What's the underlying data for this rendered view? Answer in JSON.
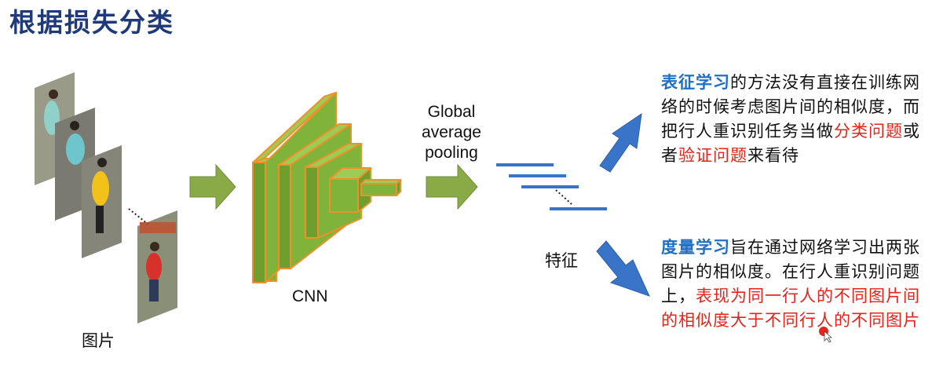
{
  "title": "根据损失分类",
  "images_label": "图片",
  "cnn_label": "CNN",
  "gap_label": [
    "Global",
    "average",
    "pooling"
  ],
  "feature_label": "特征",
  "representation": {
    "keyword": "表征学习",
    "text1": "的方法没有直接在训练网络的时候考虑图片间的相似度，而把行人重识别任务当做",
    "red1": "分类问题",
    "text2": "或者",
    "red2": "验证问题",
    "text3": "来看待"
  },
  "metric": {
    "keyword": "度量学习",
    "text1": "旨在通过网络学习出两张图片的相似度。在行人重识别问题上，",
    "red1": "表现为同一行人的不同图片间的相似度大于不同行人的不同图片"
  },
  "colors": {
    "title": "#1f3a7a",
    "cnn_fill": "#7fb33a",
    "cnn_edge": "#f0902a",
    "arrow_green": "#8aaa48",
    "arrow_blue": "#3a74c8",
    "feature_bar": "#3a74c8",
    "keyword": "#1f6fc4",
    "highlight": "#e8231a"
  }
}
